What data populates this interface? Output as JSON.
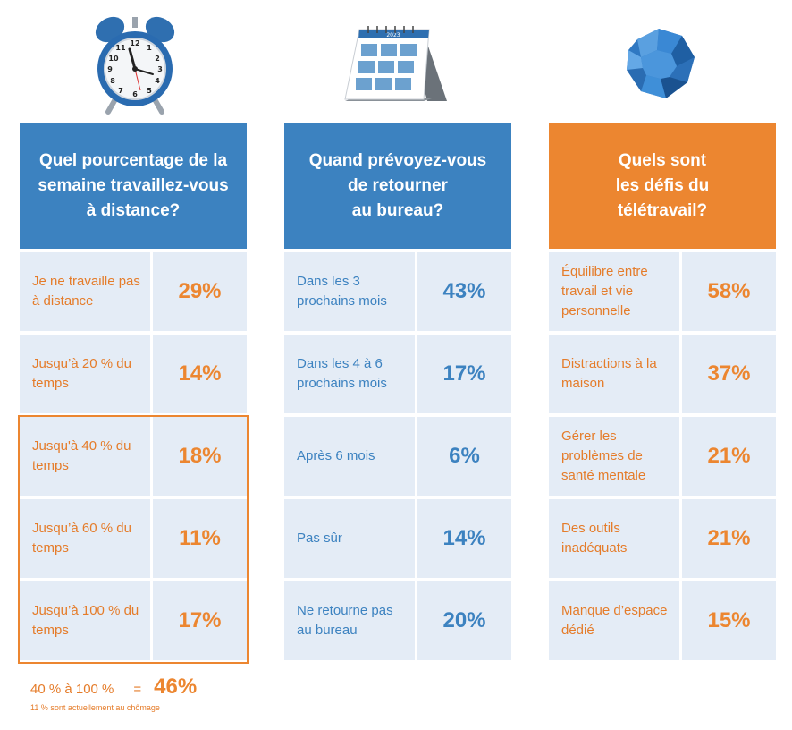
{
  "colors": {
    "blue": "#3c82c0",
    "orange": "#ec8630",
    "cell_bg": "#e4ecf6"
  },
  "icons": [
    "alarm-clock-icon",
    "desk-calendar-icon",
    "crumpled-paper-icon"
  ],
  "columns": [
    {
      "title_lines": [
        "Quel pourcentage de la",
        "semaine travaillez-vous",
        "à distance?"
      ],
      "rows": [
        {
          "label": "Je ne travaille pas à distance",
          "value": "29%"
        },
        {
          "label": "Jusqu’à 20 % du temps",
          "value": "14%"
        },
        {
          "label": "Jusqu'à 40 % du temps",
          "value": "18%"
        },
        {
          "label": "Jusqu’à 60 % du temps",
          "value": "11%"
        },
        {
          "label": "Jusqu’à 100 %   du temps",
          "value": "17%"
        }
      ]
    },
    {
      "title_lines": [
        "Quand prévoyez-vous",
        "de retourner",
        "au bureau?"
      ],
      "rows": [
        {
          "label": "Dans les 3 prochains mois",
          "value": "43%"
        },
        {
          "label": "Dans les  4 à 6 prochains mois",
          "value": "17%"
        },
        {
          "label": "Après 6 mois",
          "value": "6%"
        },
        {
          "label": "Pas sûr",
          "value": "14%"
        },
        {
          "label": "Ne retourne pas au bureau",
          "value": "20%"
        }
      ]
    },
    {
      "title_lines": [
        "Quels sont",
        "les défis du",
        "télétravail?"
      ],
      "rows": [
        {
          "label": "Équilibre entre travail et vie personnelle",
          "value": "58%"
        },
        {
          "label": "Distractions à la maison",
          "value": "37%"
        },
        {
          "label": "Gérer les problèmes de santé mentale",
          "value": "21%"
        },
        {
          "label": "Des outils inadéquats",
          "value": "21%"
        },
        {
          "label": "Manque d’espace dédié",
          "value": "15%"
        }
      ]
    }
  ],
  "summary": {
    "label": "40 % à 100 %",
    "equals": "=",
    "value": "46%"
  },
  "note": "11 % sont actuellement au chômage"
}
